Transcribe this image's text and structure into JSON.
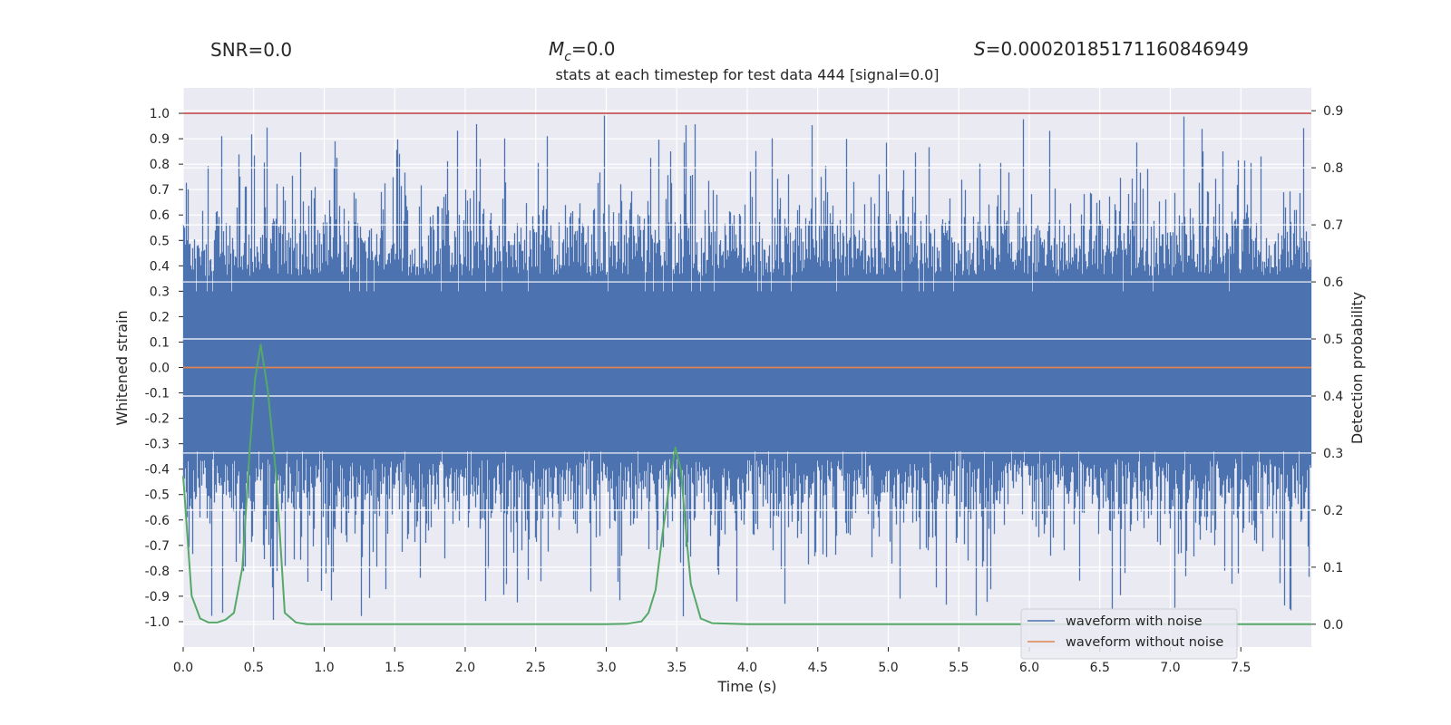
{
  "header": {
    "snr": "SNR=0.0",
    "mc_symbol": "M",
    "mc_sub": "c",
    "mc_value": "=0.0",
    "s_symbol": "S",
    "s_value": "=0.00020185171160846949"
  },
  "chart_data": {
    "type": "line",
    "title": "stats at each timestep for test data 444 [signal=0.0]",
    "xlabel": "Time (s)",
    "ylabel": "Whitened strain",
    "ylabel_right": "Detection probability",
    "xlim": [
      0.0,
      8.0
    ],
    "ylim": [
      -1.1,
      1.1
    ],
    "ylim_right": [
      -0.04,
      0.94
    ],
    "xticks": [
      "0.0",
      "0.5",
      "1.0",
      "1.5",
      "2.0",
      "2.5",
      "3.0",
      "3.5",
      "4.0",
      "4.5",
      "5.0",
      "5.5",
      "6.0",
      "6.5",
      "7.0",
      "7.5"
    ],
    "yticks": [
      "1.0",
      "0.9",
      "0.8",
      "0.7",
      "0.6",
      "0.5",
      "0.4",
      "0.3",
      "0.2",
      "0.1",
      "0.0",
      "-0.1",
      "-0.2",
      "-0.3",
      "-0.4",
      "-0.5",
      "-0.6",
      "-0.7",
      "-0.8",
      "-0.9",
      "-1.0"
    ],
    "yticks_right": [
      "0.9",
      "0.8",
      "0.7",
      "0.6",
      "0.5",
      "0.4",
      "0.3",
      "0.2",
      "0.1",
      "0.0"
    ],
    "threshold": {
      "value": 1.0,
      "color": "#c44e52"
    },
    "grid": true,
    "legend_position": "lower-right",
    "series": [
      {
        "name": "waveform with noise",
        "color": "#4c72b0",
        "description": "dense whitened noise, mostly within ±0.5, peaks near ±1.0"
      },
      {
        "name": "waveform without noise",
        "color": "#dd8452",
        "x": [
          0.0,
          8.0
        ],
        "y": [
          0.0,
          0.0
        ]
      },
      {
        "name": "detection probability",
        "color": "#55a868",
        "axis": "right",
        "x": [
          0.0,
          0.06,
          0.12,
          0.18,
          0.24,
          0.3,
          0.36,
          0.42,
          0.47,
          0.51,
          0.55,
          0.6,
          0.66,
          0.72,
          0.8,
          0.88,
          1.0,
          2.0,
          3.0,
          3.15,
          3.25,
          3.3,
          3.35,
          3.4,
          3.45,
          3.49,
          3.53,
          3.57,
          3.6,
          3.67,
          3.75,
          4.0,
          6.0,
          8.0
        ],
        "y": [
          0.26,
          0.05,
          0.01,
          0.003,
          0.003,
          0.008,
          0.02,
          0.1,
          0.3,
          0.43,
          0.49,
          0.41,
          0.26,
          0.02,
          0.003,
          0.0,
          0.0,
          0.0,
          0.0,
          0.001,
          0.005,
          0.02,
          0.06,
          0.16,
          0.25,
          0.31,
          0.27,
          0.15,
          0.07,
          0.01,
          0.002,
          0.0,
          0.0,
          0.0
        ]
      }
    ]
  }
}
